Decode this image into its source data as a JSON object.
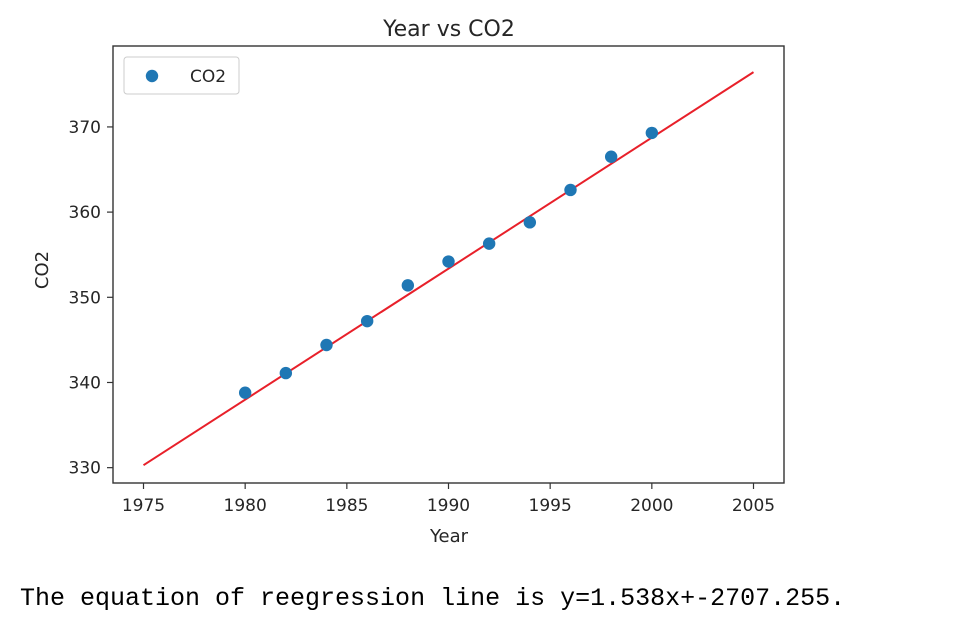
{
  "chart_data": {
    "type": "scatter",
    "title": "Year vs CO2",
    "xlabel": "Year",
    "ylabel": "CO2",
    "xlim": [
      1973.5,
      2006.5
    ],
    "ylim": [
      328.2,
      379.5
    ],
    "xticks": [
      1975,
      1980,
      1985,
      1990,
      1995,
      2000,
      2005
    ],
    "yticks": [
      330,
      340,
      350,
      360,
      370
    ],
    "grid": false,
    "legend": {
      "position": "top-left",
      "entries": [
        "CO2"
      ]
    },
    "series": [
      {
        "name": "CO2",
        "kind": "scatter",
        "color": "#1f77b4",
        "x": [
          1980,
          1982,
          1984,
          1986,
          1988,
          1990,
          1992,
          1994,
          1996,
          1998,
          2000
        ],
        "y": [
          338.8,
          341.1,
          344.4,
          347.2,
          351.4,
          354.2,
          356.3,
          358.8,
          362.6,
          366.5,
          369.3
        ]
      }
    ],
    "regression_line": {
      "color": "#e8202a",
      "x": [
        1975,
        2005
      ],
      "slope": 1.538,
      "intercept": -2707.255
    }
  },
  "footer": {
    "equation_text": "The equation of reegression line is y=1.538x+-2707.255."
  }
}
